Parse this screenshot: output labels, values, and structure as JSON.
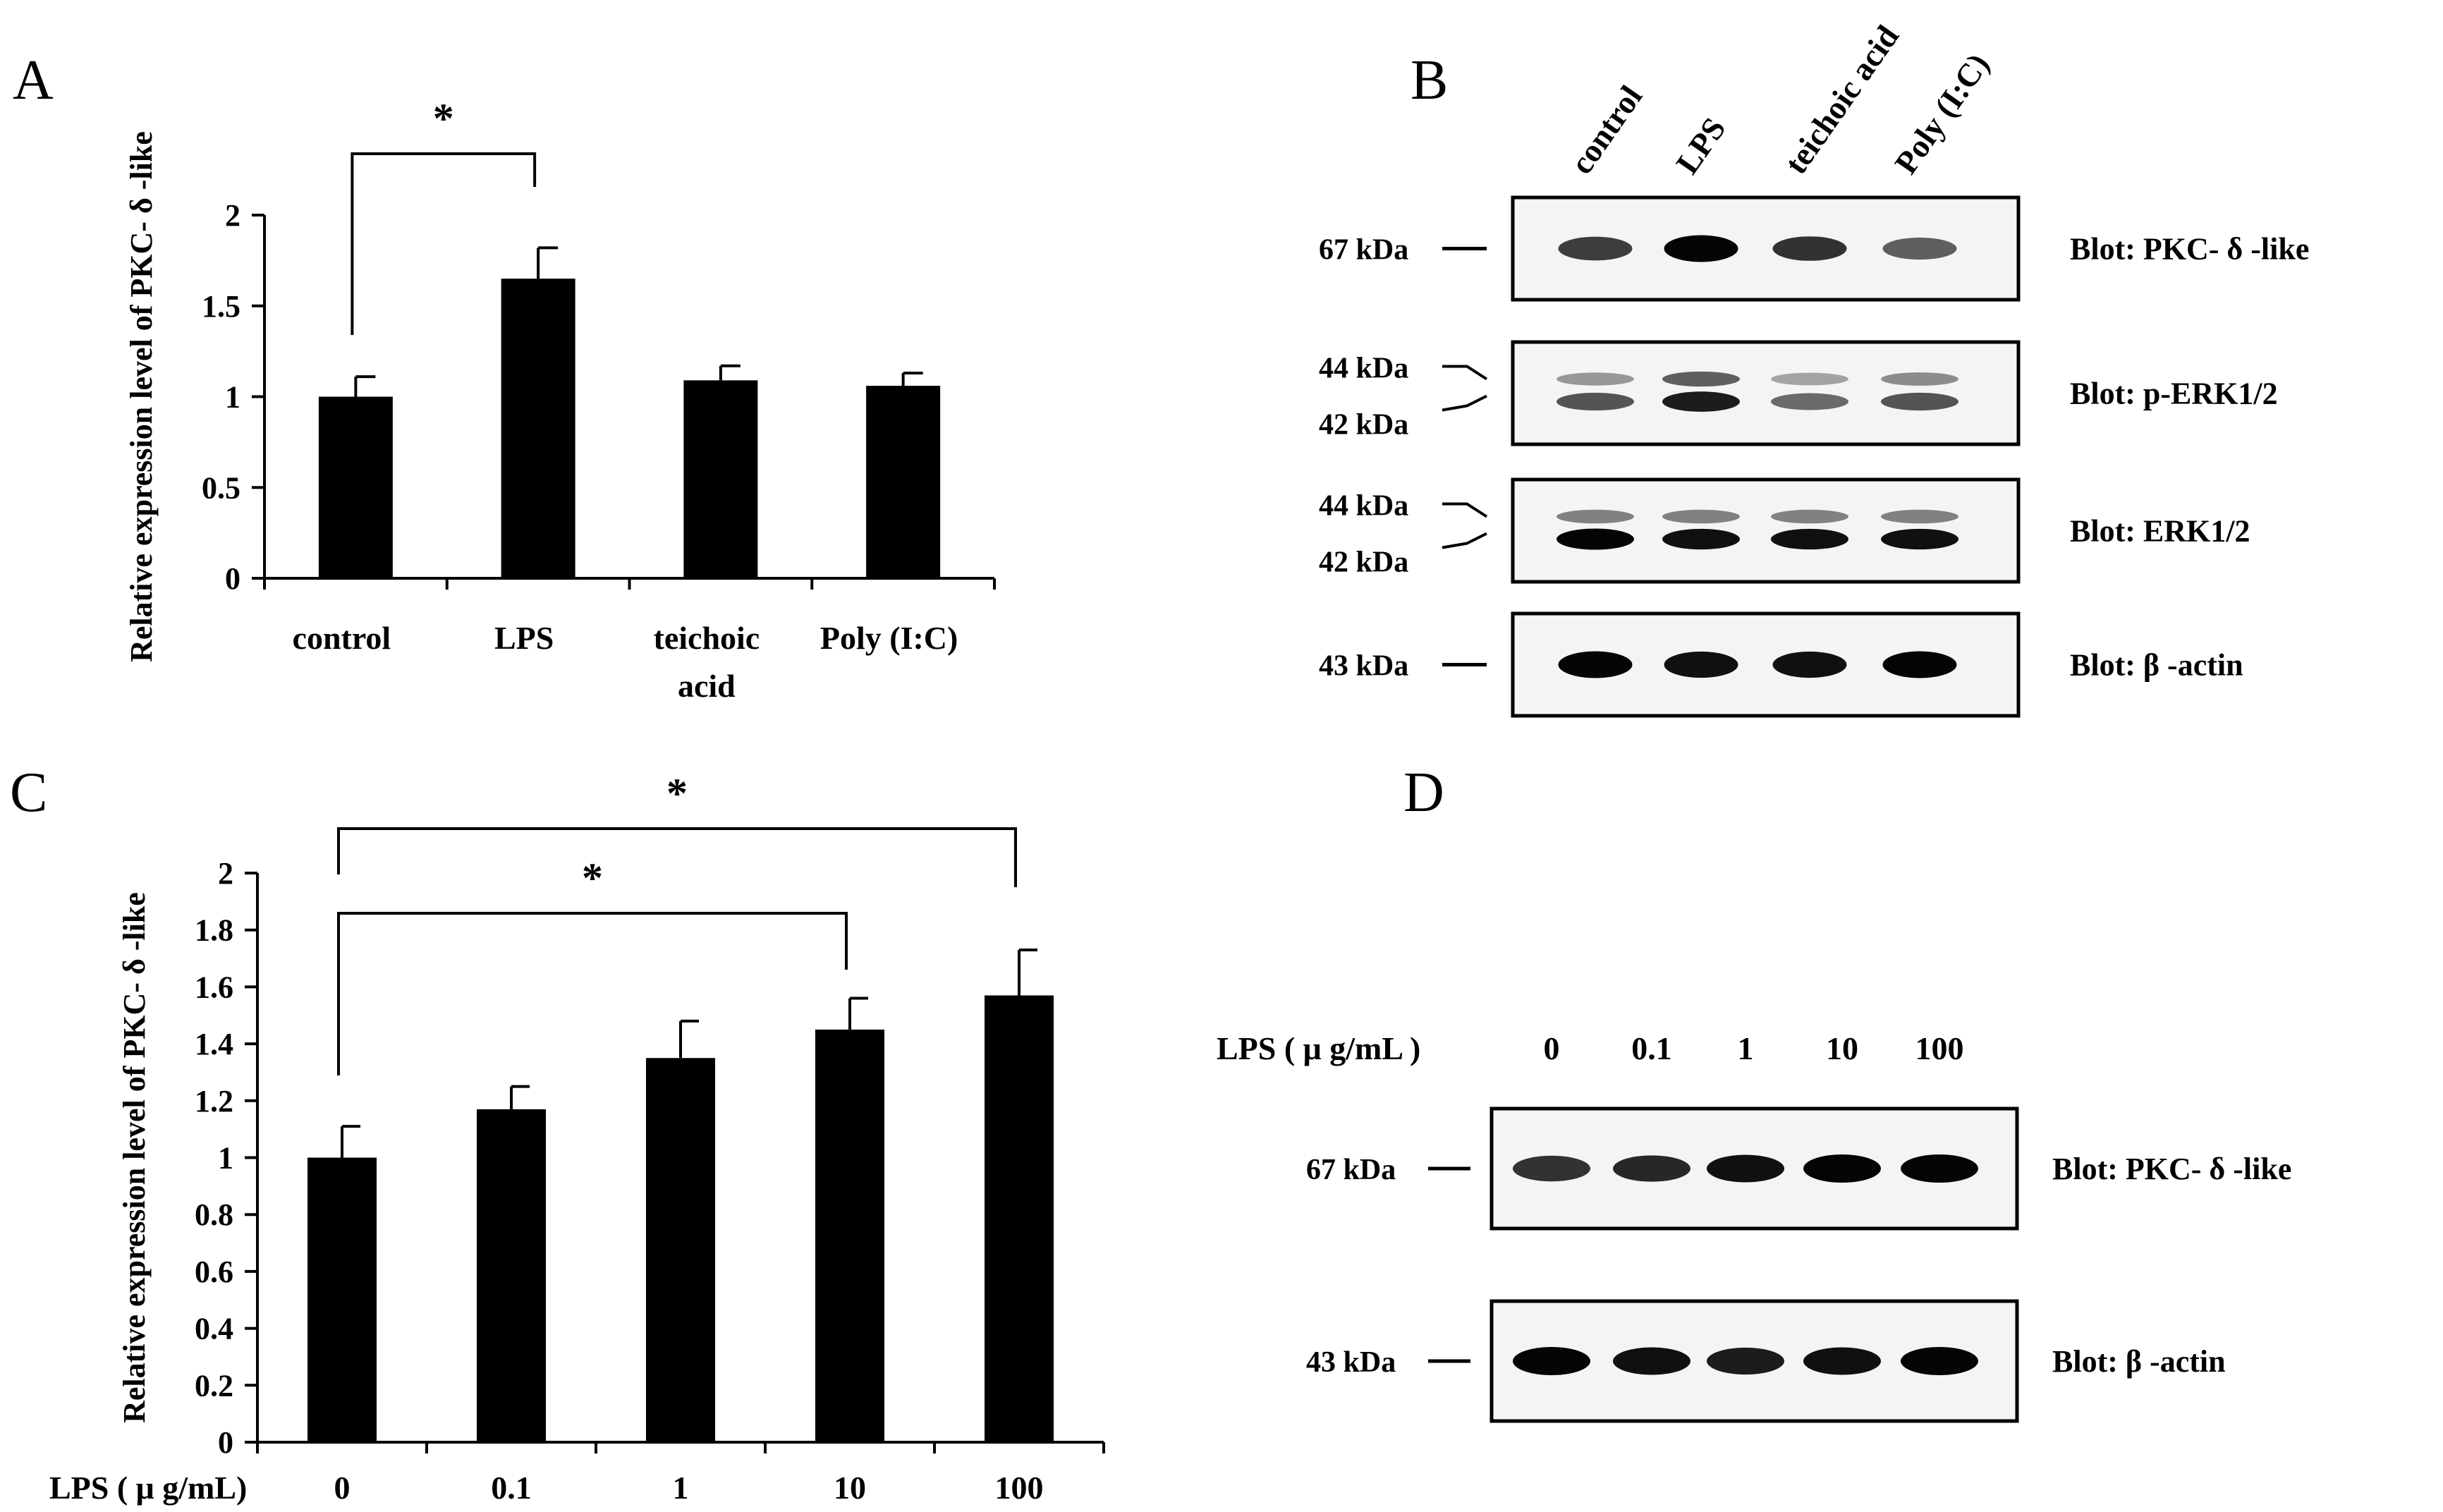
{
  "figure": {
    "panels": {
      "A": "A",
      "B": "B",
      "C": "C",
      "D": "D"
    }
  },
  "chart_data": [
    {
      "panel": "A",
      "type": "bar",
      "ylabel": "Relative expression level of PKC- δ -like",
      "xlabel": "",
      "categories": [
        "control",
        "LPS",
        "teichoic acid",
        "Poly (I:C)"
      ],
      "category_lines": [
        [
          "control"
        ],
        [
          "LPS"
        ],
        [
          "teichoic",
          "acid"
        ],
        [
          "Poly (I:C)"
        ]
      ],
      "values": [
        1.0,
        1.65,
        1.09,
        1.06
      ],
      "errors": [
        0.11,
        0.17,
        0.08,
        0.07
      ],
      "ylim": [
        0,
        2
      ],
      "yticks": [
        0,
        0.5,
        1,
        1.5,
        2
      ],
      "ytick_labels": [
        "0",
        "0.5",
        "1",
        "1.5",
        "2"
      ],
      "bar_color": "#000000",
      "significance": [
        {
          "from": 0,
          "to": 1,
          "label": "*"
        }
      ]
    },
    {
      "panel": "C",
      "type": "bar",
      "ylabel": "Relative expression level of PKC- δ -like",
      "xlabel": "LPS ( μ g/mL)",
      "categories": [
        "0",
        "0.1",
        "1",
        "10",
        "100"
      ],
      "values": [
        1.0,
        1.17,
        1.35,
        1.45,
        1.57
      ],
      "errors": [
        0.11,
        0.08,
        0.13,
        0.11,
        0.16
      ],
      "ylim": [
        0,
        2
      ],
      "yticks": [
        0,
        0.2,
        0.4,
        0.6,
        0.8,
        1,
        1.2,
        1.4,
        1.6,
        1.8,
        2
      ],
      "ytick_labels": [
        "0",
        "0.2",
        "0.4",
        "0.6",
        "0.8",
        "1",
        "1.2",
        "1.4",
        "1.6",
        "1.8",
        "2"
      ],
      "bar_color": "#000000",
      "significance": [
        {
          "from": 0,
          "to": 3,
          "label": "*"
        },
        {
          "from": 0,
          "to": 4,
          "label": "*"
        }
      ]
    }
  ],
  "blots": {
    "B": {
      "lanes": [
        "control",
        "LPS",
        "teichoic acid",
        "Poly (I:C)"
      ],
      "rows": [
        {
          "label": "Blot: PKC- δ -like",
          "markers": [
            "67 kDa"
          ],
          "bands": [
            [
              0.75
            ],
            [
              1.0
            ],
            [
              0.8
            ],
            [
              0.6
            ]
          ]
        },
        {
          "label": "Blot: p-ERK1/2",
          "markers": [
            "44 kDa",
            "42 kDa"
          ],
          "bands": [
            [
              0.35,
              0.65
            ],
            [
              0.6,
              0.9
            ],
            [
              0.3,
              0.55
            ],
            [
              0.4,
              0.65
            ]
          ]
        },
        {
          "label": "Blot: ERK1/2",
          "markers": [
            "44 kDa",
            "42 kDa"
          ],
          "bands": [
            [
              0.45,
              1.0
            ],
            [
              0.45,
              0.95
            ],
            [
              0.45,
              0.95
            ],
            [
              0.45,
              0.95
            ]
          ]
        },
        {
          "label": "Blot:  β -actin",
          "markers": [
            "43 kDa"
          ],
          "bands": [
            [
              1.0
            ],
            [
              0.95
            ],
            [
              0.95
            ],
            [
              1.0
            ]
          ]
        }
      ]
    },
    "D": {
      "header_label": "LPS ( μ g/mL )",
      "lanes": [
        "0",
        "0.1",
        "1",
        "10",
        "100"
      ],
      "rows": [
        {
          "label": "Blot: PKC- δ -like",
          "markers": [
            "67 kDa"
          ],
          "bands": [
            [
              0.8
            ],
            [
              0.85
            ],
            [
              0.95
            ],
            [
              1.0
            ],
            [
              1.0
            ]
          ]
        },
        {
          "label": "Blot:  β -actin",
          "markers": [
            "43 kDa"
          ],
          "bands": [
            [
              1.0
            ],
            [
              0.95
            ],
            [
              0.9
            ],
            [
              0.95
            ],
            [
              1.0
            ]
          ]
        }
      ]
    }
  }
}
